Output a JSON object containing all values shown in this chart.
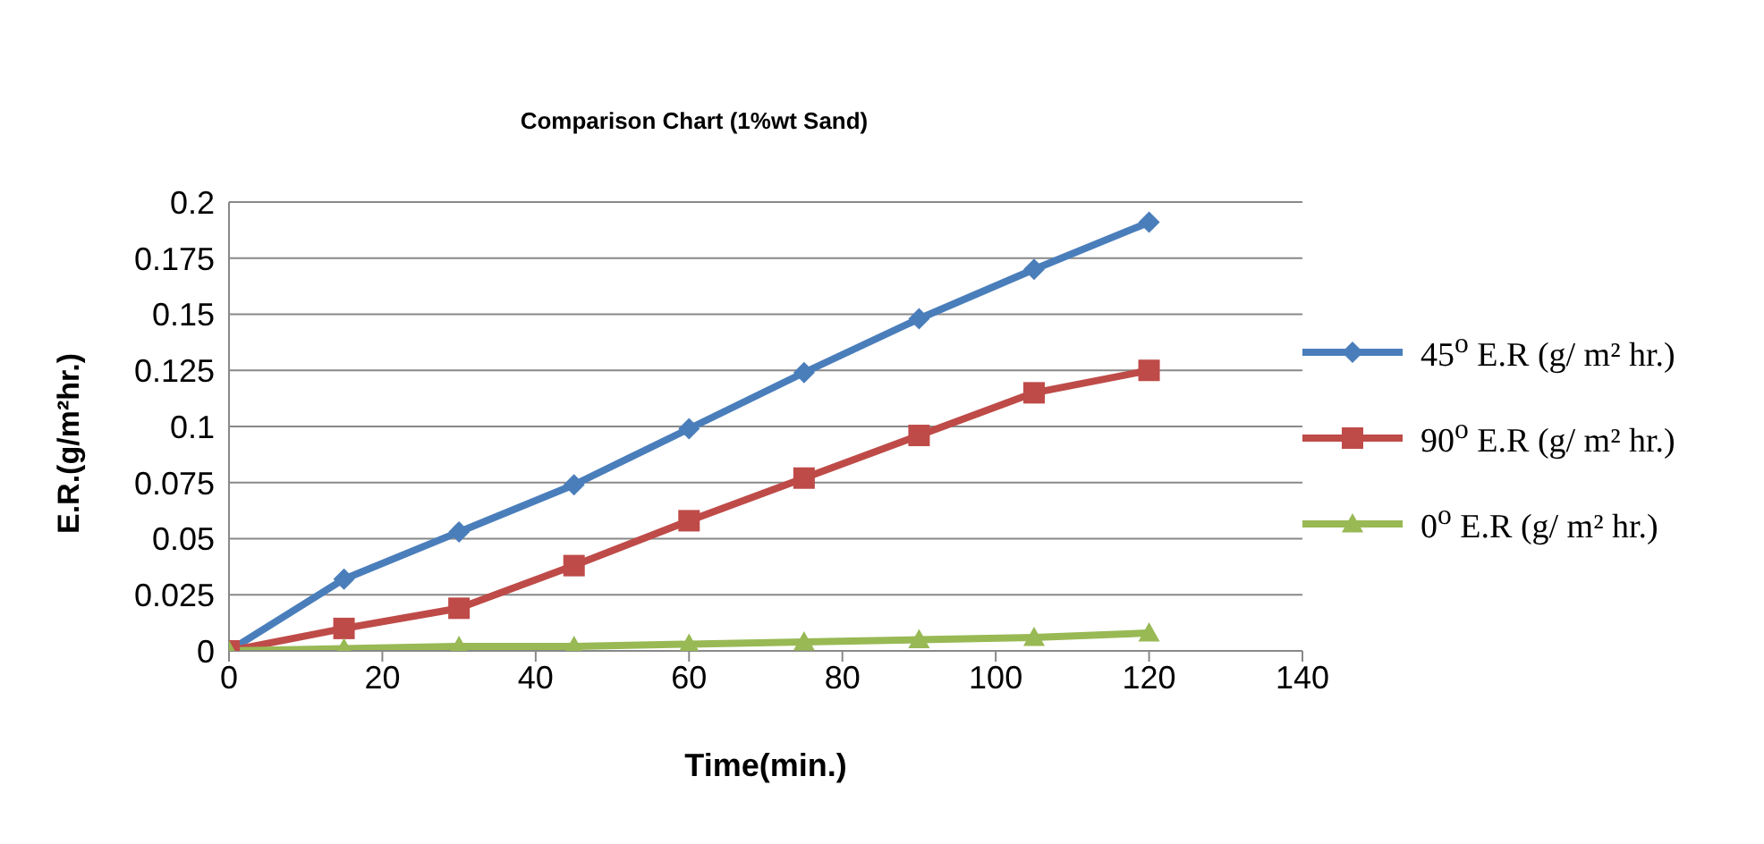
{
  "chart_data": {
    "type": "line",
    "title": "Comparison Chart (1%wt Sand)",
    "xlabel": "Time(min.)",
    "ylabel": "E.R.(g/m²hr.)",
    "x": [
      0,
      15,
      30,
      45,
      60,
      75,
      90,
      105,
      120
    ],
    "series": [
      {
        "name": "45$^{o}$ E.R (g/ m² hr.)",
        "color": "#4a7ebb",
        "marker": "diamond",
        "values": [
          0,
          0.032,
          0.053,
          0.074,
          0.099,
          0.124,
          0.148,
          0.17,
          0.191
        ]
      },
      {
        "name": "90$^{o}$ E.R (g/ m² hr.)",
        "color": "#be4b48",
        "marker": "square",
        "values": [
          0,
          0.01,
          0.019,
          0.038,
          0.058,
          0.077,
          0.096,
          0.115,
          0.125
        ]
      },
      {
        "name": "0$^{o}$ E.R (g/ m² hr.)",
        "color": "#98b954",
        "marker": "triangle",
        "values": [
          0,
          0.001,
          0.002,
          0.002,
          0.003,
          0.004,
          0.005,
          0.006,
          0.008
        ]
      }
    ],
    "xlim": [
      0,
      140
    ],
    "xticks": [
      0,
      20,
      40,
      60,
      80,
      100,
      120,
      140
    ],
    "ylim": [
      0,
      0.2
    ],
    "yticks": [
      0,
      0.025,
      0.05,
      0.075,
      0.1,
      0.125,
      0.15,
      0.175,
      0.2
    ],
    "grid": "y",
    "legend": "right"
  }
}
